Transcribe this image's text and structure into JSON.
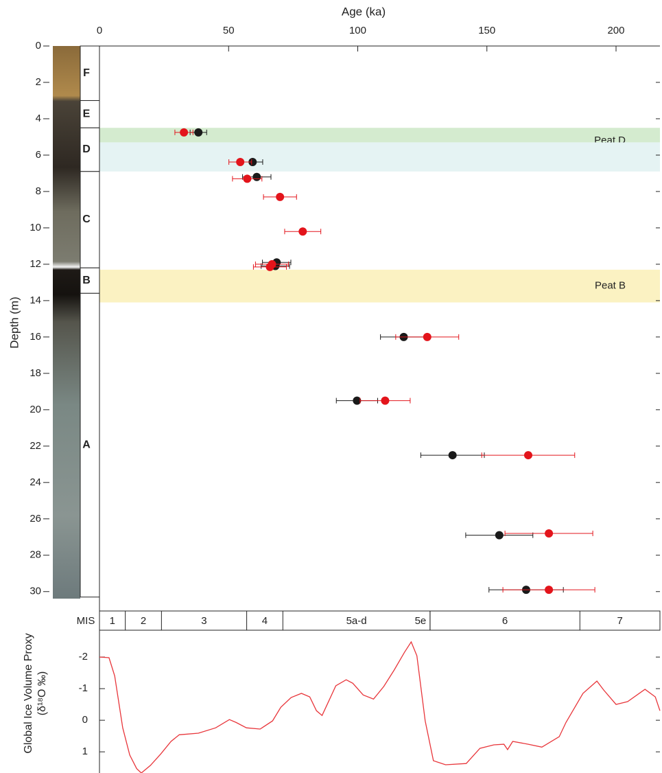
{
  "chart_data": [
    {
      "type": "scatter",
      "title": "Age (ka)",
      "ylabel": "Depth (m)",
      "xlim": [
        0,
        217
      ],
      "xticks": [
        0,
        50,
        100,
        150,
        200
      ],
      "ylim": [
        0,
        30.5
      ],
      "yticks": [
        0,
        2,
        4,
        6,
        8,
        10,
        12,
        14,
        16,
        18,
        20,
        22,
        24,
        26,
        28,
        30
      ],
      "y_inverted": true,
      "units": [
        {
          "label": "F",
          "top": 0,
          "bottom": 3.0
        },
        {
          "label": "E",
          "top": 3.0,
          "bottom": 4.5
        },
        {
          "label": "D",
          "top": 4.5,
          "bottom": 6.9
        },
        {
          "label": "C",
          "top": 6.9,
          "bottom": 12.2
        },
        {
          "label": "B",
          "top": 12.2,
          "bottom": 13.6
        },
        {
          "label": "A",
          "top": 13.6,
          "bottom": 30.3
        }
      ],
      "bands": [
        {
          "top": 4.5,
          "bottom": 5.3,
          "color": "#d4ebcf",
          "label": "Peat D"
        },
        {
          "top": 5.3,
          "bottom": 6.9,
          "color": "#e5f3f3"
        },
        {
          "top": 12.3,
          "bottom": 14.1,
          "color": "#fbf2c2",
          "label": "Peat B"
        }
      ],
      "mis_label": "MIS",
      "mis": [
        {
          "label": "1",
          "start": 0,
          "end": 10
        },
        {
          "label": "2",
          "start": 10,
          "end": 24
        },
        {
          "label": "3",
          "start": 24,
          "end": 57
        },
        {
          "label": "4",
          "start": 57,
          "end": 71
        },
        {
          "label": "5a-d",
          "start": 71,
          "end": 128
        },
        {
          "label": "5e",
          "start": 128,
          "end": 128
        },
        {
          "label": "6",
          "start": 128,
          "end": 186
        },
        {
          "label": "7",
          "start": 186,
          "end": 217
        }
      ],
      "series": [
        {
          "color": "#1a1a1a",
          "x": [
            38.3,
            59.3,
            60.9,
            68.6,
            68.1,
            117.8,
            99.7,
            136.7,
            154.8,
            165.2
          ],
          "xerr": [
            3.2,
            3.9,
            5.5,
            5.5,
            5.5,
            9,
            8,
            12.3,
            13,
            14.4
          ],
          "y": [
            4.75,
            6.38,
            7.2,
            11.9,
            12.1,
            16.0,
            19.5,
            22.5,
            26.9,
            29.9
          ]
        },
        {
          "color": "#e3141b",
          "x": [
            32.7,
            54.5,
            57.2,
            69.9,
            78.7,
            66.8,
            66.0,
            126.9,
            110.6,
            166,
            174,
            174
          ],
          "xerr": [
            3.5,
            4.4,
            5.7,
            6.4,
            7,
            6.4,
            6.4,
            12.2,
            9.7,
            18,
            17,
            17.8
          ],
          "y": [
            4.75,
            6.38,
            7.3,
            8.3,
            10.2,
            12.0,
            12.15,
            16.0,
            19.5,
            22.5,
            26.8,
            29.9
          ]
        }
      ]
    },
    {
      "type": "line",
      "ylabel": [
        "Global Ice Volume Proxy",
        "(δ¹⁸O ‰)"
      ],
      "xlim": [
        0,
        217
      ],
      "ylim": [
        -2.85,
        1.67
      ],
      "yticks": [
        -2,
        -1,
        0,
        1
      ],
      "y_inverted": true,
      "color": "#e8353a",
      "x": [
        0,
        3.7,
        5.9,
        9,
        11.7,
        14.4,
        16.2,
        19.7,
        23.7,
        27.7,
        30.9,
        38.3,
        45,
        50.3,
        52.9,
        56.9,
        62.2,
        67,
        70.2,
        74.2,
        78.2,
        81.4,
        84,
        86.2,
        88.3,
        91.5,
        95.5,
        98.1,
        102.1,
        106.1,
        110.1,
        114.1,
        118.1,
        120.7,
        122.9,
        126.1,
        129.3,
        134,
        142,
        147.3,
        152.7,
        156.6,
        158,
        160,
        166,
        171.3,
        178,
        180.6,
        187.2,
        192.6,
        195.2,
        200,
        204.5,
        211.2,
        215.2,
        217
      ],
      "values": [
        -2,
        -1.98,
        -1.4,
        0.24,
        1.1,
        1.53,
        1.67,
        1.43,
        1.07,
        0.67,
        0.46,
        0.41,
        0.24,
        -0.02,
        0.07,
        0.24,
        0.28,
        0.02,
        -0.41,
        -0.72,
        -0.85,
        -0.74,
        -0.3,
        -0.15,
        -0.52,
        -1.09,
        -1.28,
        -1.17,
        -0.8,
        -0.67,
        -1.07,
        -1.59,
        -2.15,
        -2.48,
        -2.04,
        0.02,
        1.28,
        1.41,
        1.37,
        0.89,
        0.78,
        0.76,
        0.93,
        0.67,
        0.76,
        0.85,
        0.52,
        0.07,
        -0.85,
        -1.24,
        -0.96,
        -0.5,
        -0.59,
        -0.98,
        -0.74,
        -0.3
      ]
    }
  ]
}
